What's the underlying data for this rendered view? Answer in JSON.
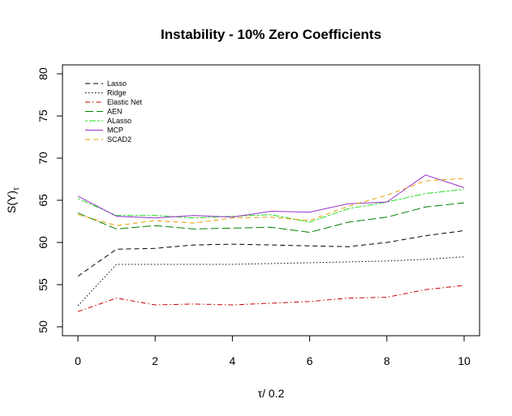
{
  "chart_data": {
    "type": "line",
    "title": "Instability - 10% Zero Coefficients",
    "xlabel": "τ/ 0.2",
    "ylabel": "S(Y)",
    "ylabel_subscript": "τ",
    "xlim": [
      0,
      10
    ],
    "ylim": [
      50,
      80
    ],
    "x_ticks": [
      0,
      2,
      4,
      6,
      8,
      10
    ],
    "y_ticks": [
      50,
      55,
      60,
      65,
      70,
      75,
      80
    ],
    "x": [
      0,
      1,
      2,
      3,
      4,
      5,
      6,
      7,
      8,
      9,
      10
    ],
    "legend_position": "top-left",
    "series": [
      {
        "name": "Lasso",
        "color": "#000000",
        "dash": "dashed",
        "values": [
          56.0,
          59.2,
          59.3,
          59.7,
          59.8,
          59.7,
          59.6,
          59.5,
          60.0,
          60.8,
          61.4
        ]
      },
      {
        "name": "Ridge",
        "color": "#000000",
        "dash": "dotted",
        "values": [
          52.5,
          57.4,
          57.4,
          57.4,
          57.4,
          57.5,
          57.6,
          57.7,
          57.8,
          58.0,
          58.3
        ]
      },
      {
        "name": "Elastic Net",
        "color": "#cc0000",
        "dash": "dashdot",
        "values": [
          51.8,
          53.4,
          52.6,
          52.7,
          52.6,
          52.8,
          53.0,
          53.4,
          53.5,
          54.4,
          54.9
        ]
      },
      {
        "name": "AEN",
        "color": "#008000",
        "dash": "longdash",
        "values": [
          63.5,
          61.6,
          62.0,
          61.6,
          61.7,
          61.8,
          61.2,
          62.4,
          63.0,
          64.2,
          64.7
        ]
      },
      {
        "name": "ALasso",
        "color": "#22dd22",
        "dash": "twodash",
        "values": [
          65.2,
          63.2,
          63.2,
          62.9,
          63.1,
          63.3,
          62.4,
          64.0,
          64.8,
          65.8,
          66.3
        ]
      },
      {
        "name": "MCP",
        "color": "#9933cc",
        "dash": "solid",
        "values": [
          65.5,
          63.1,
          62.9,
          63.2,
          63.0,
          63.7,
          63.6,
          64.6,
          64.8,
          68.0,
          66.5
        ]
      },
      {
        "name": "SCAD2",
        "color": "#e69f00",
        "dash": "dashed",
        "values": [
          63.3,
          62.0,
          62.6,
          62.3,
          62.9,
          63.0,
          62.6,
          64.3,
          65.6,
          67.3,
          67.6
        ]
      }
    ]
  }
}
